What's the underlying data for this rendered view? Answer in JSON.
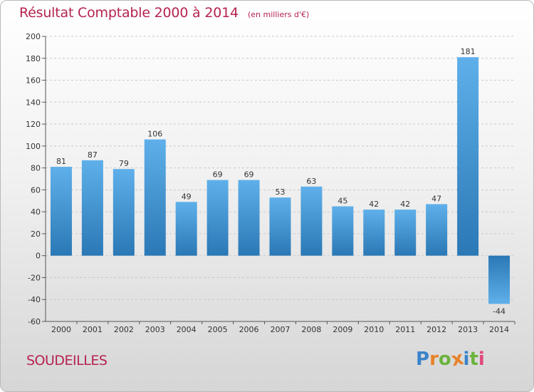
{
  "title": "Résultat Comptable 2000 à 2014",
  "subtitle": "(en milliers d'€)",
  "commune": "SOUDEILLES",
  "logo": {
    "letters": [
      "P",
      "r",
      "o",
      "x",
      "i",
      "t",
      "i"
    ],
    "colors": [
      "#3a83c9",
      "#e8822a",
      "#6cb33f",
      "#e8822a",
      "#3a83c9",
      "#6cb33f",
      "#e04a7a"
    ]
  },
  "colors": {
    "title": "#b5234f",
    "bar_light": "#5fb0ea",
    "bar_dark": "#2a78b5"
  },
  "chart_data": {
    "type": "bar",
    "categories": [
      "2000",
      "2001",
      "2002",
      "2003",
      "2004",
      "2005",
      "2006",
      "2007",
      "2008",
      "2009",
      "2010",
      "2011",
      "2012",
      "2013",
      "2014"
    ],
    "values": [
      81,
      87,
      79,
      106,
      49,
      69,
      69,
      53,
      63,
      45,
      42,
      42,
      47,
      181,
      -44
    ],
    "yticks": [
      200,
      180,
      160,
      140,
      120,
      100,
      80,
      60,
      40,
      20,
      0,
      -20,
      -40,
      -60
    ],
    "ylim": [
      -60,
      200
    ],
    "grid": true
  }
}
